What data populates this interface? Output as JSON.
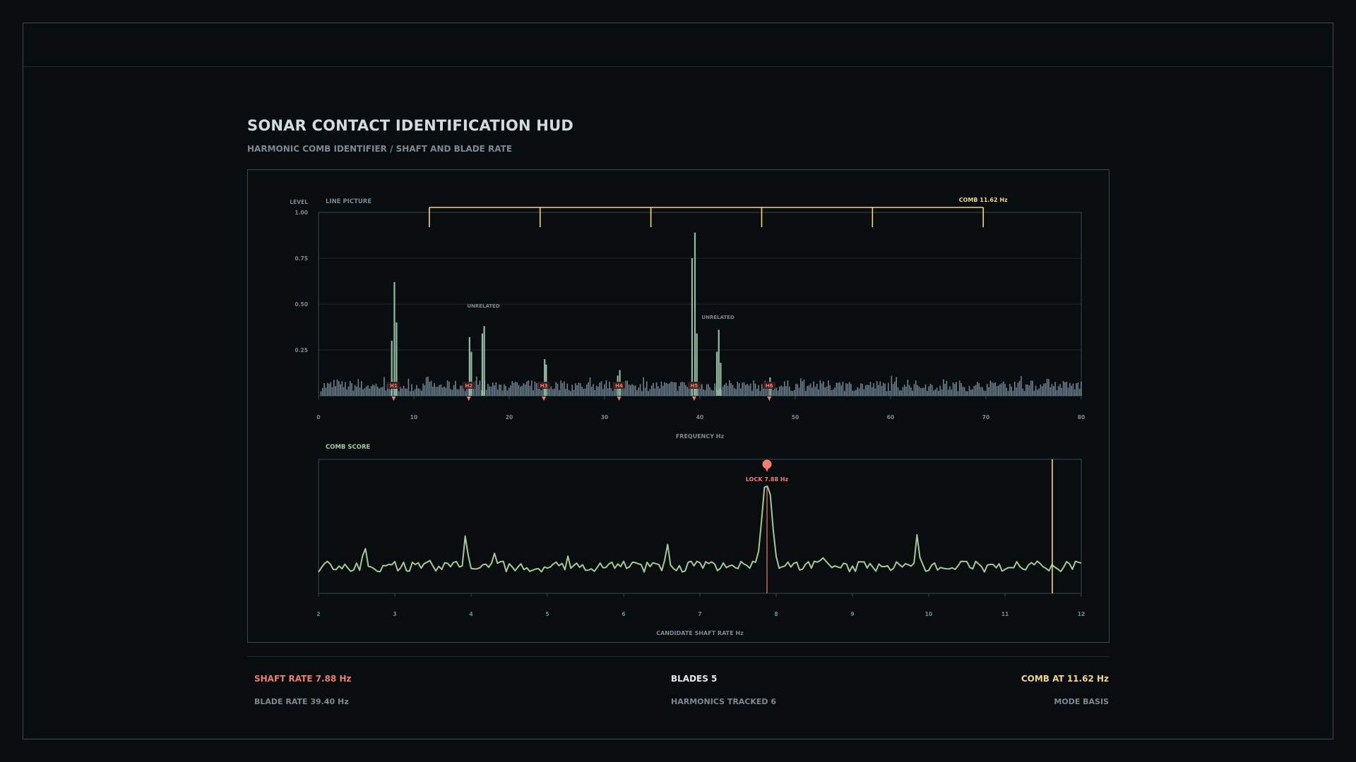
{
  "header": {
    "title": "SONAR CONTACT IDENTIFICATION HUD",
    "subtitle": "HARMONIC COMB IDENTIFIER / SHAFT AND BLADE RATE"
  },
  "colors": {
    "background": "#090d10",
    "accent_red": "#ef7d70",
    "accent_yellow": "#f2d68a",
    "line_green": "#a7c99a",
    "bar_blue": "#7f96a6",
    "bar_green": "#93bba1"
  },
  "chart_data": [
    {
      "type": "bar",
      "title": "LINE PICTURE",
      "ylabel": "LEVEL",
      "xlabel": "FREQUENCY Hz",
      "xlim": [
        0,
        80
      ],
      "ylim": [
        0,
        1
      ],
      "x_ticks": [
        "0",
        "10",
        "20",
        "30",
        "40",
        "50",
        "60",
        "70",
        "80"
      ],
      "y_ticks": [
        "1.00",
        "0.75",
        "0.50",
        "0.25"
      ],
      "grid": true,
      "noise_floor": 0.07,
      "peaks": [
        {
          "x": 7.6,
          "y": 0.3
        },
        {
          "x": 7.88,
          "y": 0.62
        },
        {
          "x": 8.1,
          "y": 0.4
        },
        {
          "x": 15.76,
          "y": 0.32
        },
        {
          "x": 15.95,
          "y": 0.24
        },
        {
          "x": 17.1,
          "y": 0.34
        },
        {
          "x": 17.3,
          "y": 0.38
        },
        {
          "x": 23.64,
          "y": 0.2
        },
        {
          "x": 23.8,
          "y": 0.17
        },
        {
          "x": 31.52,
          "y": 0.14
        },
        {
          "x": 31.3,
          "y": 0.11
        },
        {
          "x": 39.1,
          "y": 0.75
        },
        {
          "x": 39.4,
          "y": 0.89
        },
        {
          "x": 39.6,
          "y": 0.34
        },
        {
          "x": 41.7,
          "y": 0.24
        },
        {
          "x": 41.9,
          "y": 0.36
        },
        {
          "x": 42.1,
          "y": 0.18
        },
        {
          "x": 47.28,
          "y": 0.1
        }
      ],
      "harmonics": [
        {
          "label": "H1",
          "x": 7.88
        },
        {
          "label": "H2",
          "x": 15.76
        },
        {
          "label": "H3",
          "x": 23.64
        },
        {
          "label": "H4",
          "x": 31.52
        },
        {
          "label": "H5",
          "x": 39.4
        },
        {
          "label": "H6",
          "x": 47.28
        }
      ],
      "comb": {
        "label": "COMB 11.62 Hz",
        "spacing": 11.62,
        "teeth": [
          11.62,
          23.24,
          34.86,
          46.48,
          58.1,
          69.72
        ]
      },
      "annotations": [
        {
          "text": "UNRELATED",
          "x": 17.3,
          "y": 0.48
        },
        {
          "text": "UNRELATED",
          "x": 41.9,
          "y": 0.42
        }
      ]
    },
    {
      "type": "line",
      "title": "COMB SCORE",
      "xlabel": "CANDIDATE SHAFT RATE Hz",
      "xlim": [
        2,
        12
      ],
      "ylim": [
        0,
        1
      ],
      "x_ticks": [
        "2",
        "3",
        "4",
        "5",
        "6",
        "7",
        "8",
        "9",
        "10",
        "11",
        "12"
      ],
      "lock": {
        "label": "LOCK 7.88 Hz",
        "x": 7.88
      },
      "comb_marker": {
        "x": 11.62
      },
      "peaks": [
        {
          "x": 2.6,
          "y": 0.38
        },
        {
          "x": 3.0,
          "y": 0.22
        },
        {
          "x": 3.45,
          "y": 0.26
        },
        {
          "x": 3.93,
          "y": 0.49
        },
        {
          "x": 4.3,
          "y": 0.31
        },
        {
          "x": 5.27,
          "y": 0.27
        },
        {
          "x": 5.85,
          "y": 0.22
        },
        {
          "x": 6.57,
          "y": 0.41
        },
        {
          "x": 7.88,
          "y": 1.0
        },
        {
          "x": 8.6,
          "y": 0.3
        },
        {
          "x": 9.85,
          "y": 0.5
        },
        {
          "x": 10.48,
          "y": 0.28
        },
        {
          "x": 11.8,
          "y": 0.22
        }
      ]
    }
  ],
  "footer": {
    "shaft_rate": "SHAFT RATE 7.88 Hz",
    "blade_rate": "BLADE RATE 39.40 Hz",
    "blades": "BLADES 5",
    "harmonics_tracked": "HARMONICS TRACKED 6",
    "comb_at": "COMB AT 11.62 Hz",
    "mode": "MODE BASIS"
  }
}
